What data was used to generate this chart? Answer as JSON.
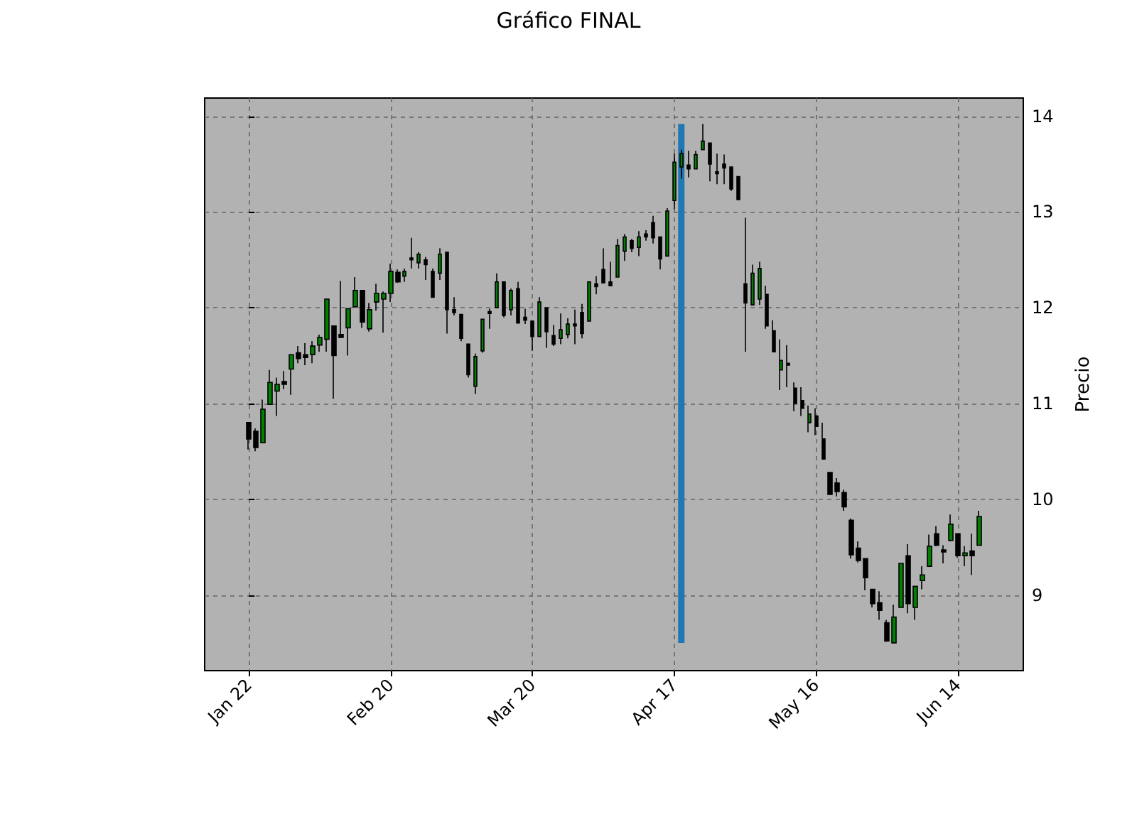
{
  "chart_data": {
    "type": "candlestick",
    "title": "Gráfico FINAL",
    "ylabel": "Precio",
    "categories": [
      "Jan 22",
      null,
      null,
      null,
      null,
      null,
      null,
      null,
      null,
      null,
      null,
      null,
      null,
      null,
      null,
      null,
      null,
      null,
      null,
      null,
      "Feb 20",
      null,
      null,
      null,
      null,
      null,
      null,
      null,
      null,
      null,
      null,
      null,
      null,
      null,
      null,
      null,
      null,
      null,
      null,
      null,
      "Mar 20",
      null,
      null,
      null,
      null,
      null,
      null,
      null,
      null,
      null,
      null,
      null,
      null,
      null,
      null,
      null,
      null,
      null,
      null,
      null,
      "Apr 17",
      null,
      null,
      null,
      null,
      null,
      null,
      null,
      null,
      null,
      null,
      null,
      null,
      null,
      null,
      null,
      null,
      null,
      null,
      null,
      "May 16",
      null,
      null,
      null,
      null,
      null,
      null,
      null,
      null,
      null,
      null,
      null,
      null,
      null,
      null,
      null,
      null,
      null,
      null,
      null,
      "Jun 14",
      null,
      null,
      null
    ],
    "ohlc": [
      [
        10.8,
        10.8,
        10.52,
        10.63
      ],
      [
        10.71,
        10.74,
        10.5,
        10.54
      ],
      [
        10.59,
        11.04,
        10.59,
        10.94
      ],
      [
        10.99,
        11.35,
        10.99,
        11.22
      ],
      [
        11.13,
        11.27,
        10.87,
        11.2
      ],
      [
        11.23,
        11.34,
        11.15,
        11.2
      ],
      [
        11.36,
        11.51,
        11.09,
        11.51
      ],
      [
        11.53,
        11.6,
        11.42,
        11.47
      ],
      [
        11.51,
        11.63,
        11.4,
        11.48
      ],
      [
        11.51,
        11.65,
        11.42,
        11.6
      ],
      [
        11.61,
        11.72,
        11.54,
        11.69
      ],
      [
        11.67,
        12.09,
        11.54,
        12.09
      ],
      [
        11.81,
        11.81,
        11.05,
        11.5
      ],
      [
        11.72,
        12.28,
        11.69,
        11.69
      ],
      [
        11.79,
        11.99,
        11.5,
        11.99
      ],
      [
        12.01,
        12.32,
        12.01,
        12.18
      ],
      [
        12.18,
        12.18,
        11.79,
        11.85
      ],
      [
        11.78,
        12.05,
        11.75,
        11.98
      ],
      [
        12.06,
        12.25,
        11.97,
        12.15
      ],
      [
        12.09,
        12.17,
        11.74,
        12.15
      ],
      [
        12.15,
        12.46,
        12.06,
        12.38
      ],
      [
        12.37,
        12.4,
        12.26,
        12.27
      ],
      [
        12.33,
        12.41,
        12.27,
        12.38
      ],
      [
        12.52,
        12.73,
        12.41,
        12.5
      ],
      [
        12.47,
        12.58,
        12.41,
        12.56
      ],
      [
        12.5,
        12.53,
        12.29,
        12.45
      ],
      [
        12.38,
        12.41,
        12.11,
        12.11
      ],
      [
        12.36,
        12.62,
        12.29,
        12.56
      ],
      [
        12.58,
        12.58,
        11.73,
        11.98
      ],
      [
        11.98,
        12.11,
        11.92,
        11.95
      ],
      [
        11.93,
        11.93,
        11.65,
        11.68
      ],
      [
        11.62,
        11.62,
        11.27,
        11.3
      ],
      [
        11.18,
        11.52,
        11.1,
        11.49
      ],
      [
        11.55,
        11.88,
        11.53,
        11.88
      ],
      [
        11.96,
        11.99,
        11.78,
        11.94
      ],
      [
        12.0,
        12.36,
        12.0,
        12.27
      ],
      [
        12.27,
        12.27,
        11.9,
        11.92
      ],
      [
        11.98,
        12.2,
        11.92,
        12.18
      ],
      [
        12.2,
        12.27,
        11.84,
        11.84
      ],
      [
        11.9,
        11.99,
        11.83,
        11.87
      ],
      [
        11.86,
        11.86,
        11.55,
        11.7
      ],
      [
        11.7,
        12.11,
        11.7,
        12.06
      ],
      [
        12.0,
        12.0,
        11.58,
        11.75
      ],
      [
        11.71,
        11.82,
        11.6,
        11.62
      ],
      [
        11.68,
        11.94,
        11.62,
        11.77
      ],
      [
        11.72,
        11.89,
        11.68,
        11.83
      ],
      [
        11.83,
        11.98,
        11.62,
        11.81
      ],
      [
        11.95,
        12.04,
        11.68,
        11.73
      ],
      [
        11.86,
        12.27,
        11.86,
        12.27
      ],
      [
        12.25,
        12.33,
        12.14,
        12.22
      ],
      [
        12.4,
        12.62,
        12.26,
        12.26
      ],
      [
        12.27,
        12.48,
        12.23,
        12.23
      ],
      [
        12.32,
        12.72,
        12.32,
        12.65
      ],
      [
        12.59,
        12.77,
        12.49,
        12.74
      ],
      [
        12.7,
        12.72,
        12.58,
        12.62
      ],
      [
        12.63,
        12.8,
        12.54,
        12.74
      ],
      [
        12.77,
        12.81,
        12.7,
        12.74
      ],
      [
        12.89,
        12.96,
        12.67,
        12.73
      ],
      [
        12.74,
        12.74,
        12.4,
        12.51
      ],
      [
        12.54,
        13.04,
        12.54,
        13.01
      ],
      [
        13.12,
        13.61,
        13.03,
        13.52
      ],
      [
        13.47,
        13.65,
        13.35,
        13.61
      ],
      [
        13.49,
        13.64,
        13.36,
        13.45
      ],
      [
        13.45,
        13.64,
        13.45,
        13.6
      ],
      [
        13.65,
        13.92,
        13.65,
        13.74
      ],
      [
        13.72,
        13.72,
        13.32,
        13.5
      ],
      [
        13.42,
        13.61,
        13.29,
        13.4
      ],
      [
        13.5,
        13.6,
        13.29,
        13.46
      ],
      [
        13.47,
        13.47,
        13.22,
        13.24
      ],
      [
        13.37,
        13.37,
        13.13,
        13.13
      ],
      [
        12.25,
        12.94,
        11.54,
        12.05
      ],
      [
        12.03,
        12.45,
        12.03,
        12.36
      ],
      [
        12.09,
        12.48,
        12.03,
        12.41
      ],
      [
        12.14,
        12.23,
        11.78,
        11.81
      ],
      [
        11.76,
        11.87,
        11.54,
        11.54
      ],
      [
        11.35,
        11.67,
        11.14,
        11.45
      ],
      [
        11.42,
        11.61,
        11.17,
        11.4
      ],
      [
        11.16,
        11.22,
        10.92,
        11.0
      ],
      [
        11.03,
        11.17,
        10.87,
        10.95
      ],
      [
        10.8,
        10.98,
        10.7,
        10.89
      ],
      [
        10.87,
        10.95,
        10.67,
        10.76
      ],
      [
        10.63,
        10.8,
        10.42,
        10.42
      ],
      [
        10.28,
        10.28,
        10.05,
        10.05
      ],
      [
        10.17,
        10.22,
        10.03,
        10.08
      ],
      [
        10.07,
        10.1,
        9.88,
        9.92
      ],
      [
        9.78,
        9.8,
        9.38,
        9.42
      ],
      [
        9.49,
        9.56,
        9.34,
        9.36
      ],
      [
        9.38,
        9.38,
        9.05,
        9.18
      ],
      [
        9.06,
        9.06,
        8.87,
        8.91
      ],
      [
        8.92,
        9.04,
        8.74,
        8.84
      ],
      [
        8.71,
        8.74,
        8.51,
        8.52
      ],
      [
        8.5,
        8.9,
        8.5,
        8.77
      ],
      [
        8.87,
        9.33,
        8.87,
        9.33
      ],
      [
        9.41,
        9.53,
        8.81,
        8.91
      ],
      [
        8.87,
        9.09,
        8.74,
        9.09
      ],
      [
        9.15,
        9.3,
        9.06,
        9.21
      ],
      [
        9.3,
        9.63,
        9.3,
        9.51
      ],
      [
        9.64,
        9.72,
        9.51,
        9.52
      ],
      [
        9.47,
        9.52,
        9.33,
        9.45
      ],
      [
        9.57,
        9.84,
        9.56,
        9.74
      ],
      [
        9.64,
        9.64,
        9.39,
        9.41
      ],
      [
        9.41,
        9.51,
        9.3,
        9.44
      ],
      [
        9.46,
        9.64,
        9.21,
        9.41
      ],
      [
        9.52,
        9.88,
        9.52,
        9.82
      ]
    ],
    "series": [
      {
        "type": "bar",
        "color": "#1f77b4",
        "base": [
          null,
          null,
          null,
          null,
          null,
          null,
          null,
          null,
          null,
          null,
          null,
          null,
          null,
          null,
          null,
          null,
          null,
          null,
          null,
          null,
          null,
          null,
          null,
          null,
          null,
          null,
          null,
          null,
          null,
          null,
          null,
          null,
          null,
          null,
          null,
          null,
          null,
          null,
          null,
          null,
          null,
          null,
          null,
          null,
          null,
          null,
          null,
          null,
          null,
          null,
          null,
          null,
          null,
          null,
          null,
          null,
          null,
          null,
          null,
          null,
          null,
          8.5,
          null,
          null,
          null,
          null,
          null,
          null,
          null,
          null,
          null,
          null,
          null,
          null,
          null,
          null,
          null,
          null,
          null,
          null,
          null,
          null,
          null,
          null,
          null,
          null,
          null,
          null,
          null,
          null,
          null,
          null,
          null,
          null,
          null,
          null,
          null,
          null,
          null,
          null,
          null,
          null,
          null,
          null
        ],
        "values": [
          null,
          null,
          null,
          null,
          null,
          null,
          null,
          null,
          null,
          null,
          null,
          null,
          null,
          null,
          null,
          null,
          null,
          null,
          null,
          null,
          null,
          null,
          null,
          null,
          null,
          null,
          null,
          null,
          null,
          null,
          null,
          null,
          null,
          null,
          null,
          null,
          null,
          null,
          null,
          null,
          null,
          null,
          null,
          null,
          null,
          null,
          null,
          null,
          null,
          null,
          null,
          null,
          null,
          null,
          null,
          null,
          null,
          null,
          null,
          null,
          null,
          5.42,
          null,
          null,
          null,
          null,
          null,
          null,
          null,
          null,
          null,
          null,
          null,
          null,
          null,
          null,
          null,
          null,
          null,
          null,
          null,
          null,
          null,
          null,
          null,
          null,
          null,
          null,
          null,
          null,
          null,
          null,
          null,
          null,
          null,
          null,
          null,
          null,
          null,
          null,
          null,
          null,
          null,
          null
        ]
      }
    ],
    "ylim": [
      8.21,
      14.19
    ],
    "yticks": [
      9,
      10,
      11,
      12,
      13,
      14
    ],
    "grid": true
  }
}
